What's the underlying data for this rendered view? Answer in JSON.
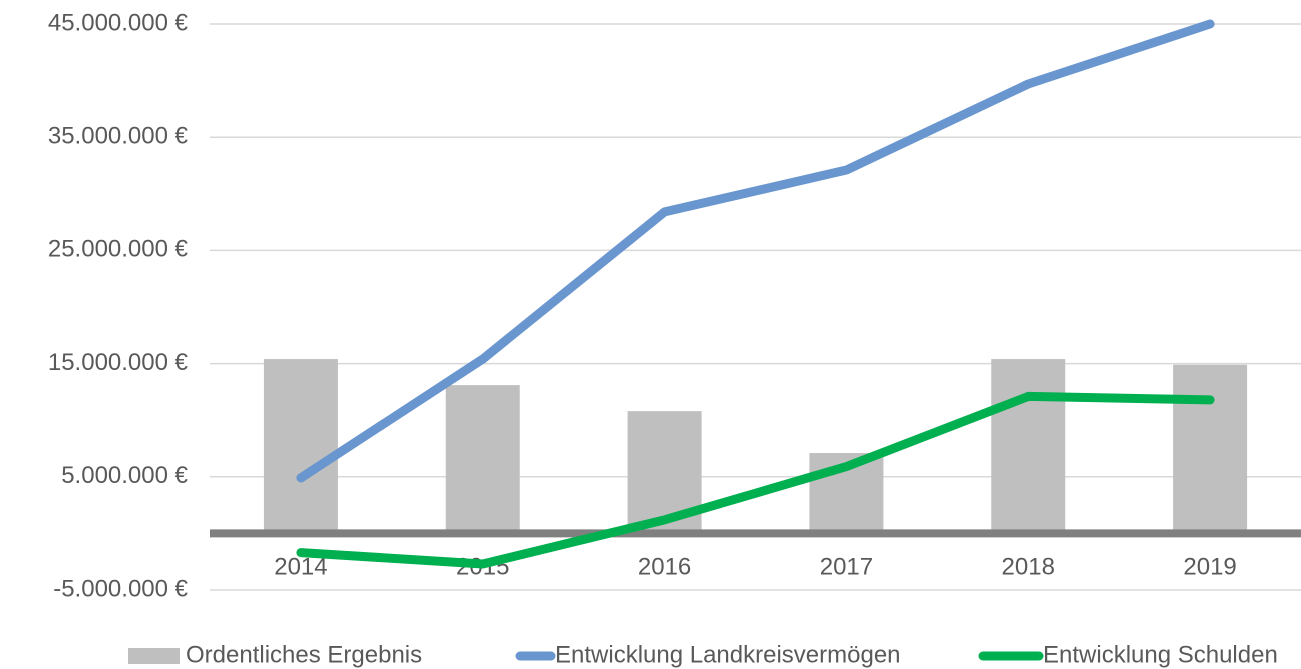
{
  "chart_data": {
    "type": "bar_line",
    "categories": [
      "2014",
      "2015",
      "2016",
      "2017",
      "2018",
      "2019"
    ],
    "series": [
      {
        "name": "Ordentliches Ergebnis",
        "type": "bar",
        "color": "#bfbfbf",
        "values": [
          15400000,
          13100000,
          10800000,
          7100000,
          15400000,
          14900000
        ]
      },
      {
        "name": "Entwicklung Landkreisvermögen",
        "type": "line",
        "color": "#6a96cf",
        "values": [
          4900000,
          15400000,
          28400000,
          32100000,
          39700000,
          45000000
        ]
      },
      {
        "name": "Entwicklung Schulden",
        "type": "line",
        "color": "#00b050",
        "values": [
          -1700000,
          -2700000,
          1200000,
          5900000,
          12100000,
          11800000
        ]
      }
    ],
    "ylim": [
      -5000000,
      45000000
    ],
    "yticks": [
      {
        "value": -5000000,
        "label": "-5.000.000 €"
      },
      {
        "value": 5000000,
        "label": "5.000.000 €"
      },
      {
        "value": 15000000,
        "label": "15.000.000 €"
      },
      {
        "value": 25000000,
        "label": "25.000.000 €"
      },
      {
        "value": 35000000,
        "label": "35.000.000 €"
      },
      {
        "value": 45000000,
        "label": "45.000.000 €"
      }
    ],
    "grid": true,
    "legend": "bottom"
  }
}
